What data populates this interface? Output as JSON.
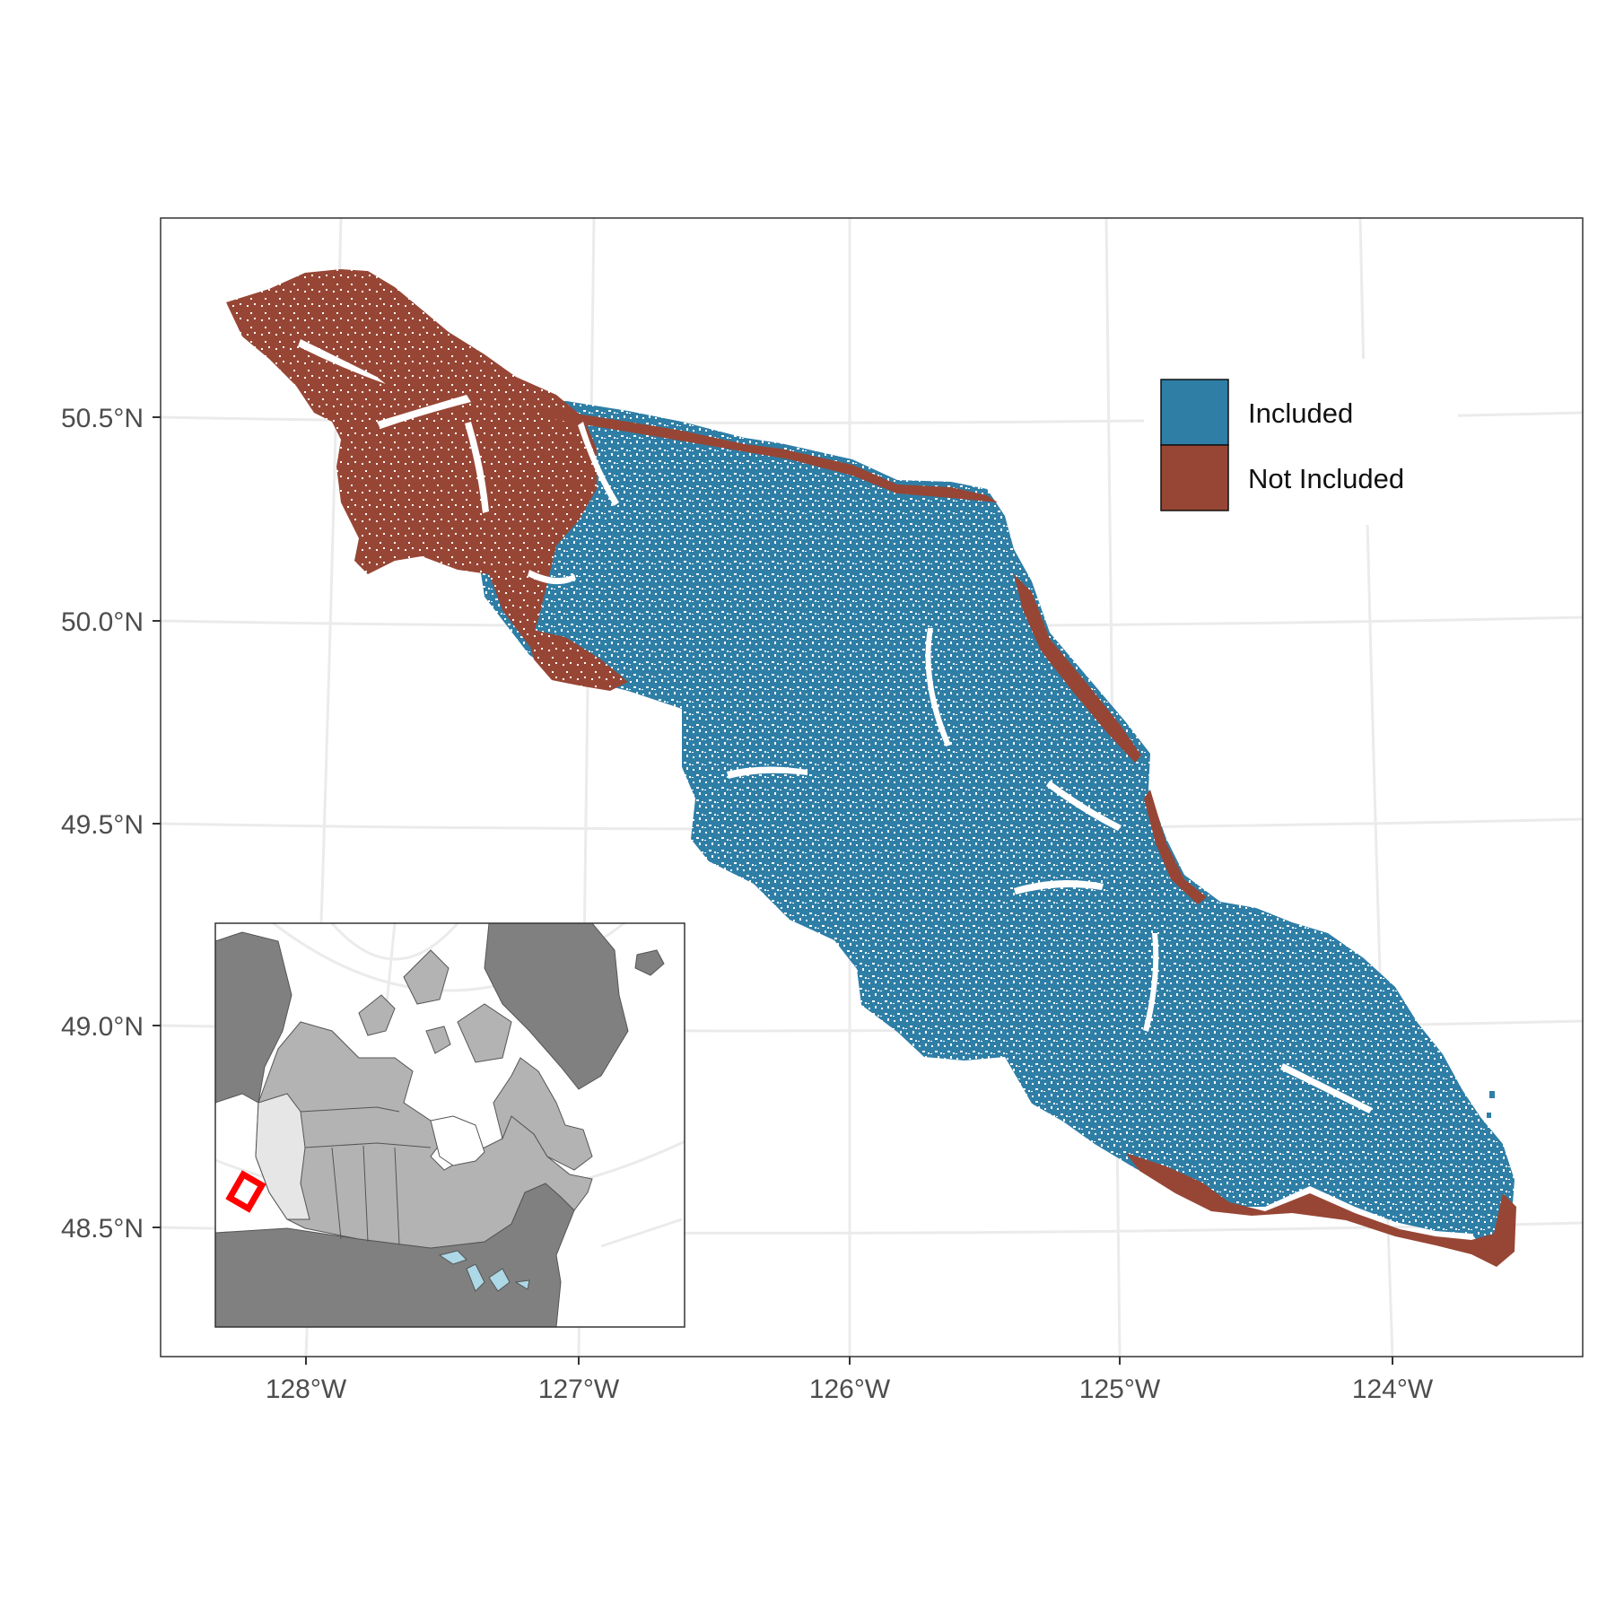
{
  "map": {
    "x_axis": {
      "ticks": [
        "128°W",
        "127°W",
        "126°W",
        "125°W",
        "124°W"
      ]
    },
    "y_axis": {
      "ticks": [
        "50.5°N",
        "50.0°N",
        "49.5°N",
        "49.0°N",
        "48.5°N"
      ]
    },
    "legend": {
      "items": [
        {
          "label": "Included",
          "color": "#2e7ea6"
        },
        {
          "label": "Not Included",
          "color": "#974635"
        }
      ]
    },
    "colors": {
      "included": "#2e7ea6",
      "not_included": "#974635",
      "graticule": "#ebebeb",
      "inset_land_dark": "#808080",
      "inset_land_mid": "#b3b3b3",
      "inset_land_light": "#e6e6e6",
      "inset_water": "#add8e6",
      "study_area_box": "#ff0000"
    },
    "inset": {
      "regions": [
        "Canada provinces and territories",
        "Alaska",
        "United States",
        "Greenland",
        "Great Lakes"
      ],
      "highlight": "Vancouver Island study area"
    }
  }
}
